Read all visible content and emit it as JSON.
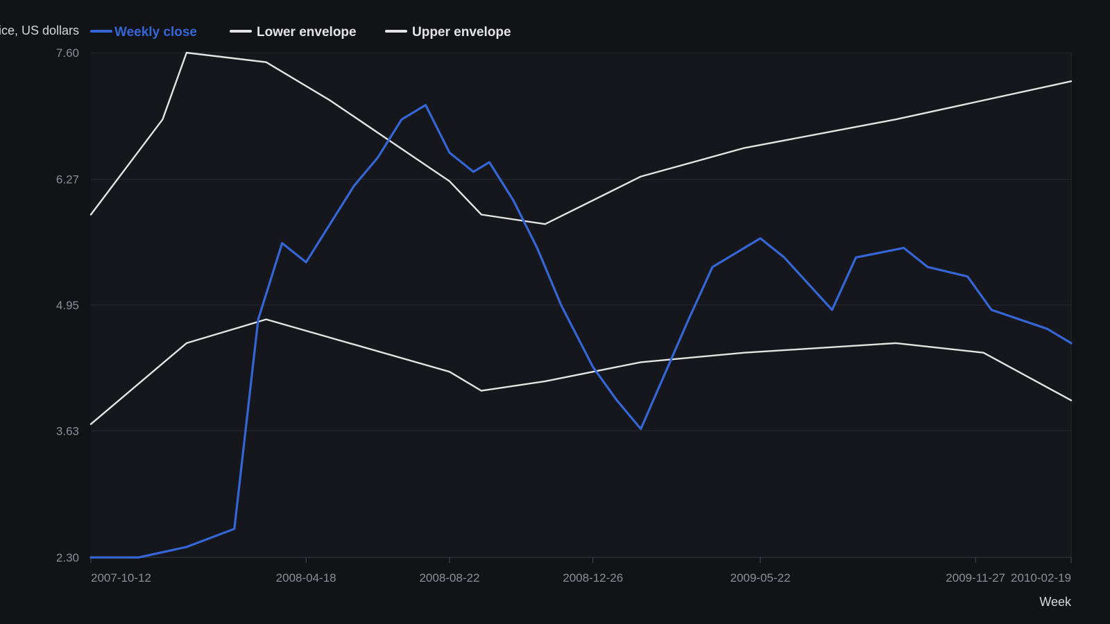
{
  "chart_data": {
    "type": "line",
    "ylabel": "Price, US dollars",
    "xlabel": "Week",
    "ylim": [
      2.3,
      7.6
    ],
    "y_ticks": [
      "2.30",
      "3.63",
      "4.95",
      "6.27",
      "7.60"
    ],
    "x_range": [
      "2007-10-12",
      "2010-02-19"
    ],
    "x_ticks": [
      "2007-10-12",
      "2008-04-18",
      "2008-08-22",
      "2008-12-26",
      "2009-05-22",
      "2009-11-27",
      "2010-02-19"
    ],
    "grid": true,
    "legend_position": "top-left",
    "series": [
      {
        "name": "Weekly close",
        "color": "#3566d6",
        "points": [
          [
            "2007-10-12",
            2.3
          ],
          [
            "2007-11-23",
            2.3
          ],
          [
            "2008-01-04",
            2.41
          ],
          [
            "2008-02-15",
            2.6
          ],
          [
            "2008-03-07",
            4.8
          ],
          [
            "2008-03-28",
            5.6
          ],
          [
            "2008-04-18",
            5.4
          ],
          [
            "2008-05-30",
            6.2
          ],
          [
            "2008-06-20",
            6.5
          ],
          [
            "2008-07-11",
            6.9
          ],
          [
            "2008-08-01",
            7.05
          ],
          [
            "2008-08-22",
            6.55
          ],
          [
            "2008-09-12",
            6.35
          ],
          [
            "2008-09-26",
            6.45
          ],
          [
            "2008-10-17",
            6.05
          ],
          [
            "2008-11-07",
            5.55
          ],
          [
            "2008-11-28",
            4.95
          ],
          [
            "2008-12-26",
            4.3
          ],
          [
            "2009-01-16",
            3.95
          ],
          [
            "2009-02-06",
            3.65
          ],
          [
            "2009-03-20",
            4.8
          ],
          [
            "2009-04-10",
            5.35
          ],
          [
            "2009-05-22",
            5.65
          ],
          [
            "2009-06-12",
            5.45
          ],
          [
            "2009-07-24",
            4.9
          ],
          [
            "2009-08-14",
            5.45
          ],
          [
            "2009-09-04",
            5.5
          ],
          [
            "2009-09-25",
            5.55
          ],
          [
            "2009-10-16",
            5.35
          ],
          [
            "2009-11-20",
            5.25
          ],
          [
            "2009-12-11",
            4.9
          ],
          [
            "2010-01-29",
            4.7
          ],
          [
            "2010-02-19",
            4.55
          ]
        ]
      },
      {
        "name": "Lower envelope",
        "color": "#e4e4e4",
        "points": [
          [
            "2007-10-12",
            3.7
          ],
          [
            "2008-01-04",
            4.55
          ],
          [
            "2008-03-14",
            4.8
          ],
          [
            "2008-08-22",
            4.25
          ],
          [
            "2008-09-19",
            4.05
          ],
          [
            "2008-11-14",
            4.15
          ],
          [
            "2009-02-06",
            4.35
          ],
          [
            "2009-05-08",
            4.45
          ],
          [
            "2009-09-18",
            4.55
          ],
          [
            "2009-12-04",
            4.45
          ],
          [
            "2010-02-19",
            3.95
          ]
        ]
      },
      {
        "name": "Upper envelope",
        "color": "#e4e4e4",
        "points": [
          [
            "2007-10-12",
            5.9
          ],
          [
            "2007-12-14",
            6.9
          ],
          [
            "2008-01-04",
            7.6
          ],
          [
            "2008-03-14",
            7.5
          ],
          [
            "2008-05-09",
            7.1
          ],
          [
            "2008-08-22",
            6.25
          ],
          [
            "2008-09-19",
            5.9
          ],
          [
            "2008-11-14",
            5.8
          ],
          [
            "2009-02-06",
            6.3
          ],
          [
            "2009-05-08",
            6.6
          ],
          [
            "2009-09-18",
            6.9
          ],
          [
            "2010-02-19",
            7.3
          ]
        ]
      }
    ]
  }
}
